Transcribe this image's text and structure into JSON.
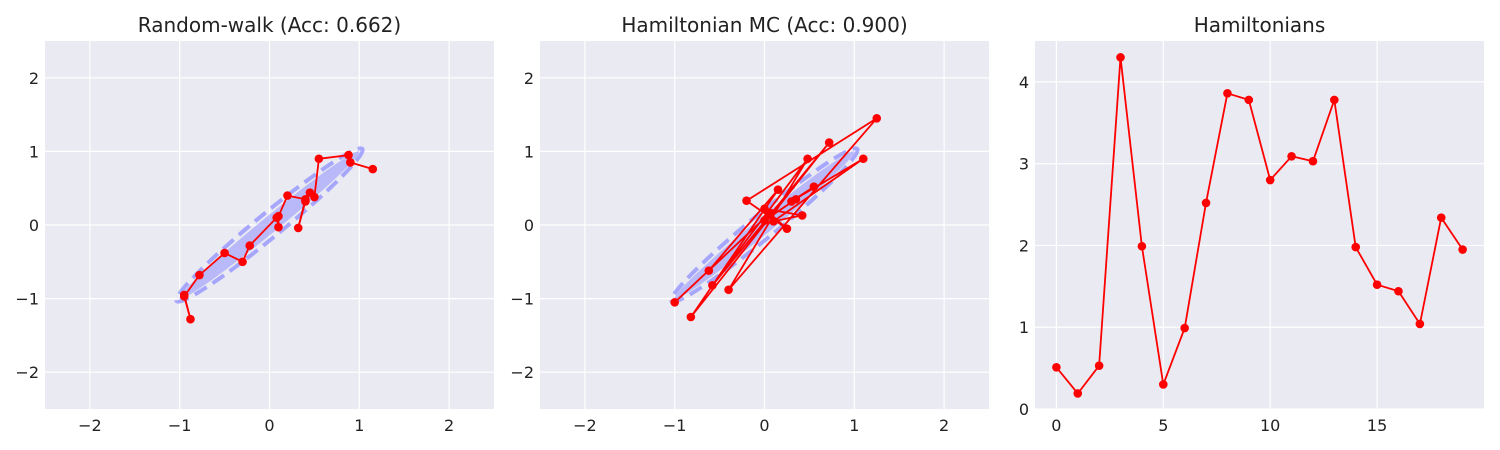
{
  "chart_data": [
    {
      "type": "scatter",
      "title": "Random-walk (Acc: 0.662)",
      "xlim": [
        -2.5,
        2.5
      ],
      "ylim": [
        -2.5,
        2.5
      ],
      "xticks": [
        -2,
        -1,
        0,
        1,
        2
      ],
      "yticks": [
        -2,
        -1,
        0,
        1,
        2
      ],
      "xtick_labels": [
        "−2",
        "−1",
        "0",
        "1",
        "2"
      ],
      "ytick_labels": [
        "−2",
        "−1",
        "0",
        "1",
        "2"
      ],
      "grid": true,
      "background_color": "#eaeaf2",
      "target_distribution": {
        "shape": "ellipse",
        "center": [
          0,
          0
        ],
        "from": [
          -1,
          -1
        ],
        "to": [
          1,
          1
        ],
        "half_width": 0.09,
        "color": "#8f8fff"
      },
      "series": [
        {
          "color": "#ff0000",
          "marker": "circle",
          "points": [
            [
              -0.95,
              -0.95
            ],
            [
              -0.88,
              -1.28
            ],
            [
              -0.95,
              -0.97
            ],
            [
              -0.78,
              -0.68
            ],
            [
              -0.5,
              -0.38
            ],
            [
              -0.3,
              -0.5
            ],
            [
              -0.22,
              -0.28
            ],
            [
              0.08,
              0.1
            ],
            [
              0.1,
              -0.03
            ],
            [
              0.1,
              0.12
            ],
            [
              0.2,
              0.4
            ],
            [
              0.4,
              0.35
            ],
            [
              0.32,
              -0.04
            ],
            [
              0.4,
              0.32
            ],
            [
              0.45,
              0.44
            ],
            [
              0.5,
              0.38
            ],
            [
              0.55,
              0.9
            ],
            [
              0.88,
              0.95
            ],
            [
              0.9,
              0.85
            ],
            [
              1.15,
              0.76
            ]
          ]
        }
      ]
    },
    {
      "type": "scatter",
      "title": "Hamiltonian MC (Acc: 0.900)",
      "xlim": [
        -2.5,
        2.5
      ],
      "ylim": [
        -2.5,
        2.5
      ],
      "xticks": [
        -2,
        -1,
        0,
        1,
        2
      ],
      "yticks": [
        -2,
        -1,
        0,
        1,
        2
      ],
      "xtick_labels": [
        "−2",
        "−1",
        "0",
        "1",
        "2"
      ],
      "ytick_labels": [
        "−2",
        "−1",
        "0",
        "1",
        "2"
      ],
      "grid": true,
      "background_color": "#eaeaf2",
      "target_distribution": {
        "shape": "ellipse",
        "center": [
          0,
          0
        ],
        "from": [
          -1,
          -1
        ],
        "to": [
          1,
          1
        ],
        "half_width": 0.09,
        "color": "#8f8fff"
      },
      "series": [
        {
          "color": "#ff0000",
          "marker": "circle",
          "points": [
            [
              -1.0,
              -1.05
            ],
            [
              0.05,
              0.15
            ],
            [
              -0.62,
              -0.62
            ],
            [
              0.15,
              0.48
            ],
            [
              -0.82,
              -1.25
            ],
            [
              0.72,
              1.12
            ],
            [
              -0.58,
              -0.82
            ],
            [
              0.48,
              0.9
            ],
            [
              -0.4,
              -0.88
            ],
            [
              1.25,
              1.45
            ],
            [
              -0.2,
              0.33
            ],
            [
              0.25,
              -0.05
            ],
            [
              0.0,
              0.22
            ],
            [
              0.42,
              0.13
            ],
            [
              0.1,
              0.05
            ],
            [
              1.1,
              0.9
            ],
            [
              0.3,
              0.32
            ],
            [
              0.55,
              0.52
            ],
            [
              0.0,
              0.06
            ],
            [
              0.35,
              0.35
            ]
          ]
        }
      ]
    },
    {
      "type": "line",
      "title": "Hamiltonians",
      "xlim": [
        -1.0,
        20.0
      ],
      "ylim": [
        0,
        4.5
      ],
      "xticks": [
        0,
        5,
        10,
        15
      ],
      "yticks": [
        0,
        1,
        2,
        3,
        4
      ],
      "xtick_labels": [
        "0",
        "5",
        "10",
        "15"
      ],
      "ytick_labels": [
        "0",
        "1",
        "2",
        "3",
        "4"
      ],
      "grid": true,
      "background_color": "#eaeaf2",
      "series": [
        {
          "color": "#ff0000",
          "marker": "circle",
          "x": [
            0,
            1,
            2,
            3,
            4,
            5,
            6,
            7,
            8,
            9,
            10,
            11,
            12,
            13,
            14,
            15,
            16,
            17,
            18,
            19
          ],
          "values": [
            0.51,
            0.19,
            0.53,
            4.3,
            1.99,
            0.3,
            0.99,
            2.52,
            3.86,
            3.78,
            2.8,
            3.09,
            3.03,
            3.78,
            1.98,
            1.52,
            1.44,
            1.04,
            2.34,
            1.95
          ]
        }
      ]
    }
  ]
}
